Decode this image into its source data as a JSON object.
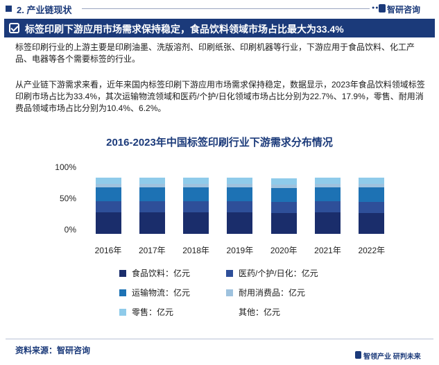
{
  "header": {
    "section": "2. 产业链现状",
    "brand": "智研咨询",
    "dots": "●●●"
  },
  "banner": {
    "title": "标签印刷下游应用市场需求保持稳定，食品饮料领域市场占比最大为33.4%"
  },
  "paragraphs": {
    "p1": "标签印刷行业的上游主要是印刷油墨、洗版溶剂、印刷纸张、印刷机器等行业，下游应用于食品饮料、化工产品、电器等各个需要标签的行业。",
    "p2": "从产业链下游需求来看，近年来国内标签印刷下游应用市场需求保持稳定，数据显示，2023年食品饮料领域标签印刷市场占比为33.4%，其次运输物流领域和医药/个护/日化领域市场占比分别为22.7%、17.9%，零售、耐用消费品领域市场占比分别为10.4%、6.2%。"
  },
  "chart_data": {
    "type": "bar",
    "stacked": true,
    "percent_stacked": true,
    "title": "2016-2023年中国标签印刷行业下游需求分布情况",
    "categories": [
      "2016年",
      "2017年",
      "2018年",
      "2019年",
      "2020年",
      "2021年",
      "2022年"
    ],
    "yticks": [
      "100%",
      "50%",
      "0%"
    ],
    "ylim": [
      0,
      100
    ],
    "legend_position": "bottom",
    "series": [
      {
        "name": "食品饮料：亿元",
        "color": "#1a2d6b",
        "values": [
          34,
          34,
          34,
          34,
          33,
          34,
          33
        ]
      },
      {
        "name": "医药/个护/日化：亿元",
        "color": "#2e4f99",
        "values": [
          18,
          18,
          18,
          18,
          18,
          18,
          18
        ]
      },
      {
        "name": "运输物流：亿元",
        "color": "#1d72b4",
        "values": [
          22,
          22,
          22,
          22,
          22,
          22,
          23
        ]
      },
      {
        "name": "耐用消费品：亿元",
        "color": "#9ec2de",
        "values": [
          6,
          6,
          6,
          6,
          6,
          6,
          6
        ]
      },
      {
        "name": "零售：亿元",
        "color": "#8fcbea",
        "values": [
          10,
          10,
          10,
          10,
          10,
          10,
          10
        ]
      },
      {
        "name": "其他：亿元",
        "color": "#ffffff",
        "values": [
          10,
          10,
          10,
          10,
          11,
          10,
          10
        ]
      }
    ]
  },
  "footer": {
    "source": "资料来源：智研咨询",
    "slogan": "智领产业  研判未来"
  }
}
